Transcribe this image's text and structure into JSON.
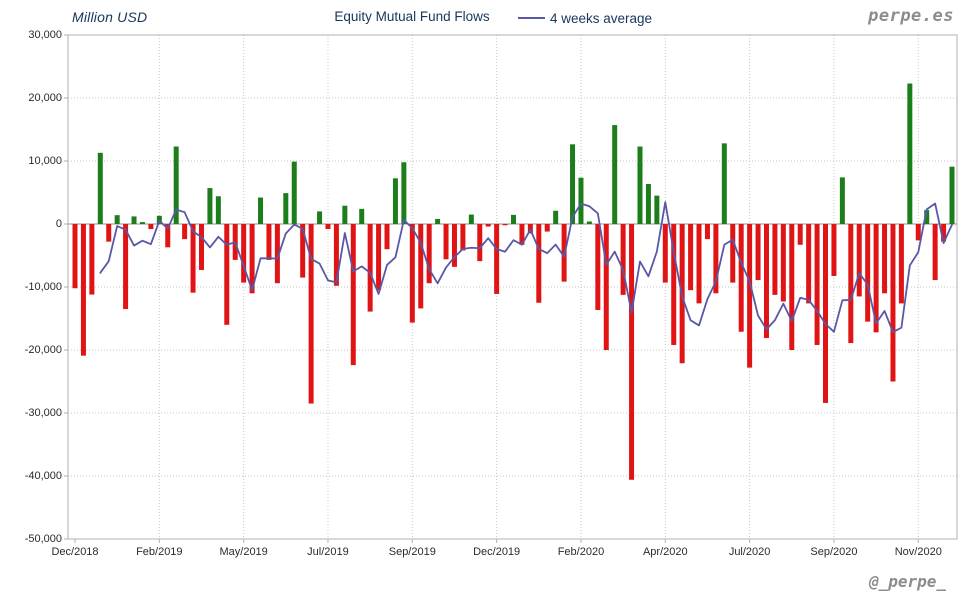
{
  "header": {
    "y_axis_title": "Million USD",
    "title": "Equity Mutual Fund Flows",
    "legend_label": "4 weeks average",
    "brand": "perpe.es",
    "watermark": "@_perpe_"
  },
  "chart_data": {
    "type": "bar",
    "title": "Equity Mutual Fund Flows",
    "unit_label": "Million USD",
    "grid": true,
    "legend": {
      "label": "4 weeks average",
      "position": "top"
    },
    "x_axis": {
      "period": "weekly",
      "n_points": 105,
      "tick_labels": [
        "Dec/2018",
        "Feb/2019",
        "May/2019",
        "Jul/2019",
        "Sep/2019",
        "Dec/2019",
        "Feb/2020",
        "Apr/2020",
        "Jul/2020",
        "Sep/2020",
        "Nov/2020"
      ],
      "tick_indices": [
        0,
        10,
        20,
        30,
        40,
        50,
        60,
        70,
        80,
        90,
        100
      ]
    },
    "y_axis": {
      "min": -50000,
      "max": 30000,
      "tick_interval": 10000,
      "tick_labels": [
        "30,000",
        "20,000",
        "10,000",
        "0",
        "-10,000",
        "-20,000",
        "-30,000",
        "-40,000",
        "-50,000"
      ],
      "tick_values": [
        30000,
        20000,
        10000,
        0,
        -10000,
        -20000,
        -30000,
        -40000,
        -50000
      ]
    },
    "series": [
      {
        "name": "Weekly equity mutual fund flows (Million USD)",
        "type": "bar",
        "values": [
          -10200,
          -20900,
          -11200,
          11300,
          -2800,
          1400,
          -13500,
          1200,
          300,
          -800,
          1300,
          -3700,
          12300,
          -2400,
          -10900,
          -7300,
          5700,
          4400,
          -16000,
          -5700,
          -9300,
          -11000,
          4200,
          -5700,
          -9400,
          4900,
          9900,
          -8500,
          -28500,
          2000,
          -800,
          -9800,
          2900,
          -22400,
          2400,
          -13900,
          -10500,
          -4000,
          7250,
          9800,
          -15650,
          -13400,
          -9400,
          800,
          -5600,
          -6800,
          -4200,
          1500,
          -5900,
          -400,
          -11100,
          -200,
          1450,
          -3300,
          -1500,
          -12500,
          -1200,
          2100,
          -9150,
          12650,
          7350,
          400,
          -13650,
          -20000,
          15700,
          -11250,
          -40600,
          12300,
          6350,
          4500,
          -9300,
          -19200,
          -22100,
          -10500,
          -12600,
          -2400,
          -11000,
          12800,
          -9300,
          -17100,
          -22800,
          -8900,
          -18100,
          -11250,
          -12300,
          -20000,
          -3300,
          -12600,
          -19200,
          -28400,
          -8250,
          7400,
          -18900,
          -11500,
          -15500,
          -17200,
          -11000,
          -25000,
          -12600,
          22300,
          -2600,
          2200,
          -8900,
          -2800,
          9100
        ]
      },
      {
        "name": "4 weeks average",
        "type": "line",
        "derived_from": "trailing 4-week mean of weekly bar values"
      }
    ],
    "colors": {
      "positive_bar": "#1b7e1b",
      "negative_bar": "#e01414",
      "average_line": "#5858a8",
      "title_text": "#17365d",
      "grid_line": "#c6c6c6",
      "frame": "#b2b2b2",
      "zero_axis": "#8f8f8f"
    }
  }
}
